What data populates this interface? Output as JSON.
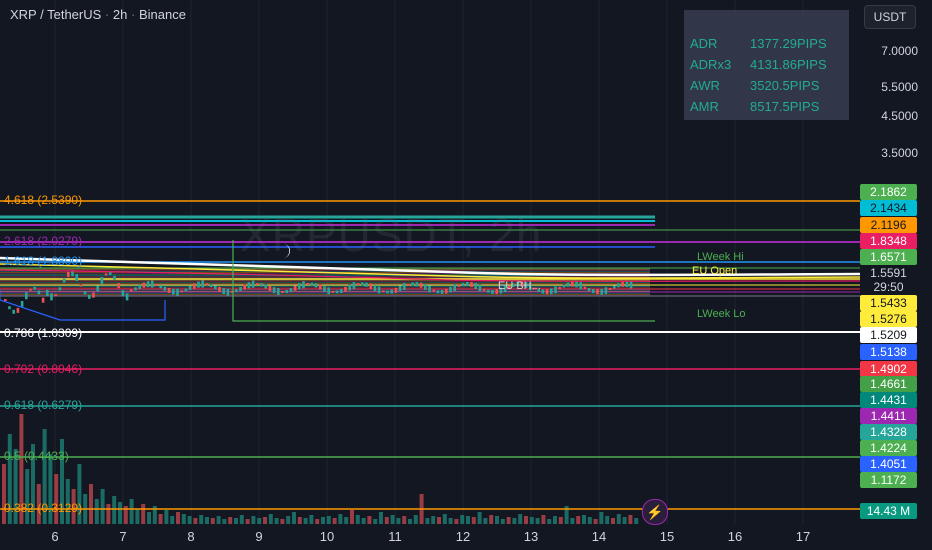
{
  "header": {
    "symbol": "XRP / TetherUS",
    "interval": "2h",
    "exchange": "Binance",
    "separator": "·"
  },
  "watermark": "XRPUSDT, 2h",
  "currency_button": "USDT",
  "stats": [
    {
      "label": "ADR",
      "value": "1377.29PIPS"
    },
    {
      "label": "ADRx3",
      "value": "4131.86PIPS"
    },
    {
      "label": "AWR",
      "value": "3520.5PIPS"
    },
    {
      "label": "AMR",
      "value": "8517.5PIPS"
    }
  ],
  "price_axis": [
    "7.0000",
    "5.5000",
    "4.5000",
    "3.5000"
  ],
  "price_tags": [
    {
      "value": "2.1862",
      "color": "#4caf50",
      "text_color": "#ffffff"
    },
    {
      "value": "2.1434",
      "color": "#00bcd4",
      "text_color": "#131722"
    },
    {
      "value": "2.1196",
      "color": "#ff9800",
      "text_color": "#131722"
    },
    {
      "value": "1.8348",
      "color": "#e91e63",
      "text_color": "#ffffff"
    },
    {
      "value": "1.6571",
      "color": "#4caf50",
      "text_color": "#ffffff"
    },
    {
      "value": "1.5591",
      "color": "#131722",
      "text_color": "#d1d4dc"
    },
    {
      "value": "29:50",
      "color": "#131722",
      "text_color": "#d1d4dc"
    },
    {
      "value": "1.5433",
      "color": "#ffeb3b",
      "text_color": "#131722"
    },
    {
      "value": "1.5276",
      "color": "#ffeb3b",
      "text_color": "#131722"
    },
    {
      "value": "1.5209",
      "color": "#ffffff",
      "text_color": "#131722"
    },
    {
      "value": "1.5138",
      "color": "#2962ff",
      "text_color": "#ffffff"
    },
    {
      "value": "1.4902",
      "color": "#f23645",
      "text_color": "#ffffff"
    },
    {
      "value": "1.4661",
      "color": "#43a047",
      "text_color": "#ffffff"
    },
    {
      "value": "1.4431",
      "color": "#00897b",
      "text_color": "#ffffff"
    },
    {
      "value": "1.4411",
      "color": "#9c27b0",
      "text_color": "#ffffff"
    },
    {
      "value": "1.4328",
      "color": "#26a69a",
      "text_color": "#ffffff"
    },
    {
      "value": "1.4224",
      "color": "#4caf50",
      "text_color": "#ffffff"
    },
    {
      "value": "1.4051",
      "color": "#2962ff",
      "text_color": "#ffffff"
    },
    {
      "value": "1.1172",
      "color": "#4caf50",
      "text_color": "#ffffff"
    },
    {
      "value": "14.43 M",
      "color": "#089981",
      "text_color": "#ffffff"
    }
  ],
  "fib_levels": [
    {
      "text": "4.618 (2.5390)",
      "color": "#ff9800"
    },
    {
      "text": "2.618 (2.0279)",
      "color": "#9c27b0"
    },
    {
      "text": "1.618 (1.8800)",
      "color": "#2196f3"
    },
    {
      "text": "0.786 (1.0309)",
      "color": "#ffffff"
    },
    {
      "text": "0.702 (0.8046)",
      "color": "#e91e63"
    },
    {
      "text": "0.618 (0.6279)",
      "color": "#26a69a"
    },
    {
      "text": "0.5 (0.4433)",
      "color": "#4caf50"
    },
    {
      "text": "0.382 (0.3129)",
      "color": "#ff9800"
    }
  ],
  "annotations": {
    "week_hi": "LWeek Hi",
    "week_lo": "LWeek Lo",
    "eu_open": "EU Open",
    "eu_bh": "EU BH..."
  },
  "time_axis": [
    "6",
    "7",
    "8",
    "9",
    "10",
    "11",
    "12",
    "13",
    "14",
    "15",
    "16",
    "17"
  ],
  "colors": {
    "background": "#131722",
    "up": "#26a69a",
    "down": "#ef5350"
  },
  "icons": [
    "crescent-moon-icon",
    "lightning-bolt-icon"
  ]
}
